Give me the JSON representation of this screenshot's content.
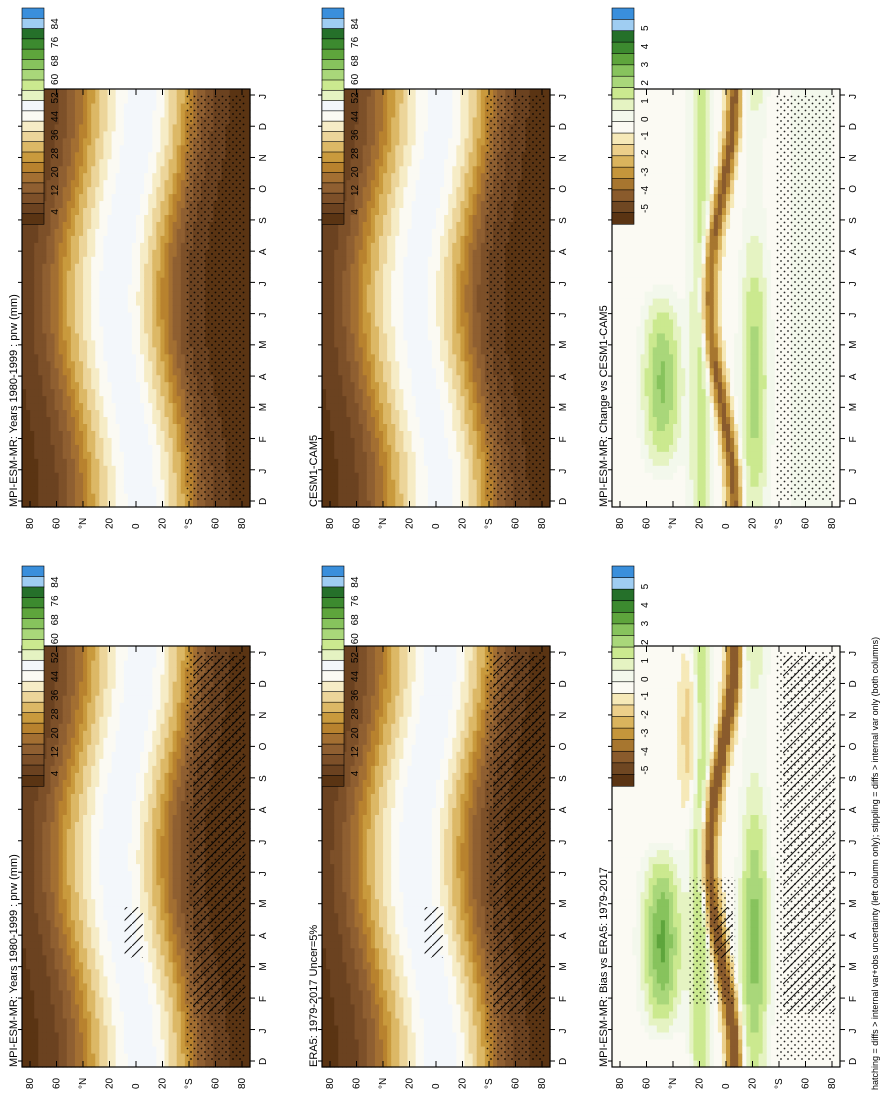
{
  "figure": {
    "footer": "hatching = diffs > internal var+obs uncertainty (left column only); stippling = diffs > internal var only (both columns)"
  },
  "palettes": {
    "brown_green_blue": [
      "#5a3413",
      "#6b4220",
      "#7d5029",
      "#8f5f31",
      "#a36f32",
      "#b8822e",
      "#c99a3d",
      "#dcb866",
      "#ecd59a",
      "#f6ecc6",
      "#fbfaf3",
      "#f3f7fb",
      "#e5f3c2",
      "#cbe98f",
      "#a9d77a",
      "#87c35d",
      "#5ea53c",
      "#3c8a2f",
      "#25702a",
      "#9fcdf2",
      "#3a8fdc"
    ],
    "bias_diverging": [
      "#5a3413",
      "#6f4722",
      "#8a5b2c",
      "#a7762f",
      "#c5963b",
      "#dab45d",
      "#eccf8a",
      "#f6e9b8",
      "#fbfaf3",
      "#f3f8ec",
      "#e5f3c2",
      "#cbe98f",
      "#a9d77a",
      "#87c35d",
      "#5ea53c",
      "#3c8a2f",
      "#25702a",
      "#9fcdf2",
      "#3a8fdc"
    ]
  },
  "axes_common": {
    "x_ticks": [
      "D",
      "J",
      "F",
      "M",
      "A",
      "M",
      "J",
      "J",
      "A",
      "S",
      "O",
      "N",
      "D",
      "J"
    ],
    "y_ticks": [
      "80",
      "60",
      "°N",
      "20",
      "0",
      "20",
      "°S",
      "60",
      "80"
    ]
  },
  "panels": [
    {
      "id": "model_clim_left",
      "title": "MPI-ESM-MR: Years 1980-1999 : prw (mm)",
      "colorbar_labels": [
        "84",
        "76",
        "68",
        "60",
        "52",
        "44",
        "36",
        "28",
        "20",
        "12",
        "4"
      ],
      "chart_data": {
        "type": "heatmap",
        "x": "month (Dec–Jan)",
        "y": "latitude (80N–80S)",
        "field": "prw",
        "unit": "mm",
        "levels": [
          4,
          12,
          20,
          28,
          36,
          44,
          52,
          60,
          68,
          76,
          84
        ],
        "hatching": true,
        "stippling": true
      }
    },
    {
      "id": "model_clim_right",
      "title": "MPI-ESM-MR: Years 1980-1999 : prw (mm)",
      "colorbar_labels": [
        "84",
        "76",
        "68",
        "60",
        "52",
        "44",
        "36",
        "28",
        "20",
        "12",
        "4"
      ],
      "chart_data": {
        "type": "heatmap",
        "x": "month (Dec–Jan)",
        "y": "latitude (80N–80S)",
        "field": "prw",
        "unit": "mm",
        "levels": [
          4,
          12,
          20,
          28,
          36,
          44,
          52,
          60,
          68,
          76,
          84
        ],
        "hatching": false,
        "stippling": true
      }
    },
    {
      "id": "obs_clim",
      "title": "ERA5: 1979-2017 Uncer=5%",
      "colorbar_labels": [
        "84",
        "76",
        "68",
        "60",
        "52",
        "44",
        "36",
        "28",
        "20",
        "12",
        "4"
      ],
      "chart_data": {
        "type": "heatmap",
        "x": "month (Dec–Jan)",
        "y": "latitude (80N–80S)",
        "field": "prw",
        "unit": "mm",
        "levels": [
          4,
          12,
          20,
          28,
          36,
          44,
          52,
          60,
          68,
          76,
          84
        ],
        "hatching": true,
        "stippling": true
      }
    },
    {
      "id": "ref_model_clim",
      "title": "CESM1-CAM5",
      "colorbar_labels": [
        "84",
        "76",
        "68",
        "60",
        "52",
        "44",
        "36",
        "28",
        "20",
        "12",
        "4"
      ],
      "chart_data": {
        "type": "heatmap",
        "x": "month (Dec–Jan)",
        "y": "latitude (80N–80S)",
        "field": "prw",
        "unit": "mm",
        "levels": [
          4,
          12,
          20,
          28,
          36,
          44,
          52,
          60,
          68,
          76,
          84
        ],
        "hatching": false,
        "stippling": true
      }
    },
    {
      "id": "bias",
      "title": "MPI-ESM-MR: Bias vs ERA5: 1979-2017",
      "colorbar_labels": [
        "5",
        "4",
        "3",
        "2",
        "1",
        "0",
        "-1",
        "-2",
        "-3",
        "-4",
        "-5"
      ],
      "chart_data": {
        "type": "heatmap",
        "x": "month (Dec–Jan)",
        "y": "latitude (80N–80S)",
        "field": "prw bias",
        "unit": "mm",
        "levels": [
          -5,
          -4,
          -3,
          -2,
          -1,
          0,
          1,
          2,
          3,
          4,
          5
        ],
        "hatching": true,
        "stippling": true
      }
    },
    {
      "id": "change",
      "title": "MPI-ESM-MR: Change vs CESM1-CAM5",
      "colorbar_labels": [
        "5",
        "4",
        "3",
        "2",
        "1",
        "0",
        "-1",
        "-2",
        "-3",
        "-4",
        "-5"
      ],
      "chart_data": {
        "type": "heatmap",
        "x": "month (Dec–Jan)",
        "y": "latitude (80N–80S)",
        "field": "prw difference",
        "unit": "mm",
        "levels": [
          -5,
          -4,
          -3,
          -2,
          -1,
          0,
          1,
          2,
          3,
          4,
          5
        ],
        "hatching": false,
        "stippling": true
      }
    }
  ]
}
